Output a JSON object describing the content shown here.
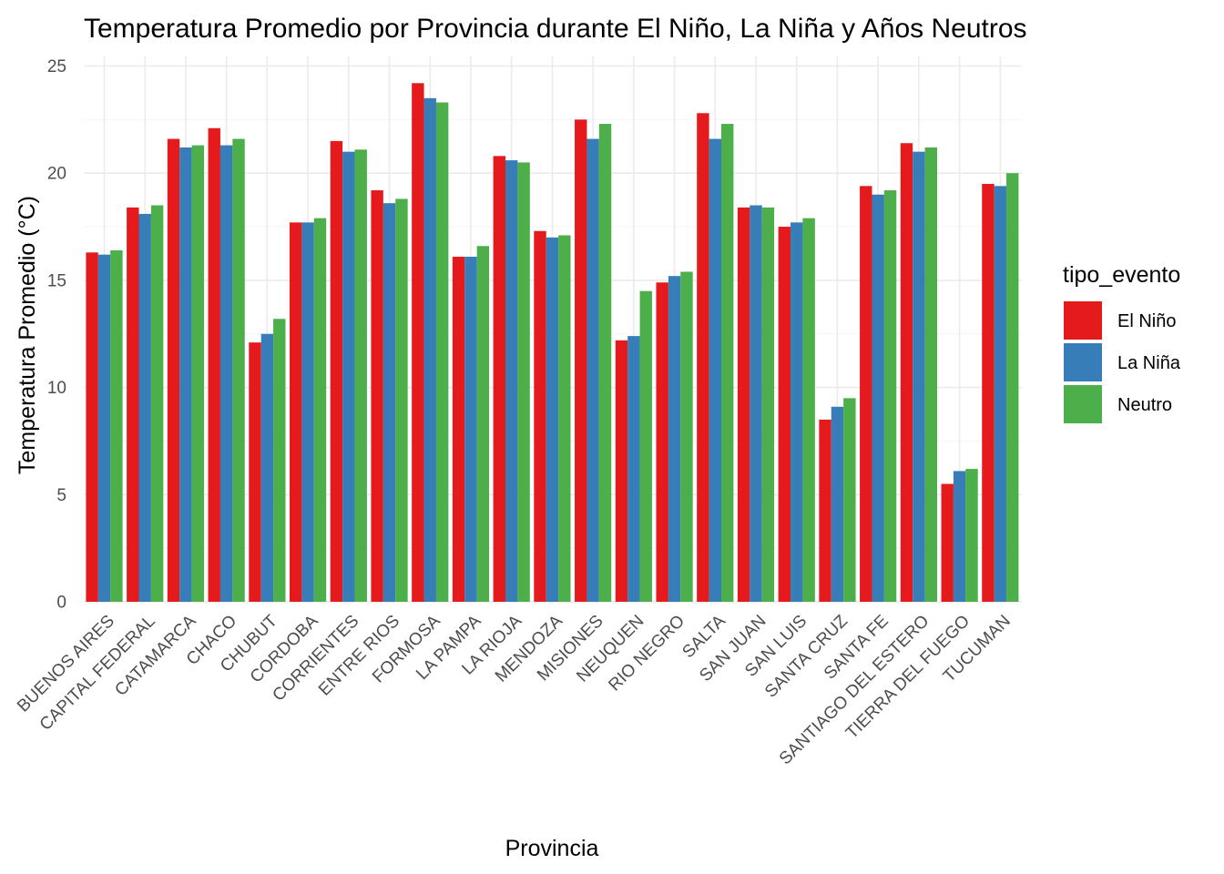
{
  "chart_data": {
    "type": "bar",
    "title": "Temperatura Promedio por Provincia durante El Niño, La Niña y Años Neutros",
    "xlabel": "Provincia",
    "ylabel": "Temperatura Promedio (°C)",
    "ylim": [
      0,
      25
    ],
    "yticks": [
      0,
      5,
      10,
      15,
      20,
      25
    ],
    "grid": true,
    "legend": {
      "title": "tipo_evento",
      "position": "right"
    },
    "categories": [
      "BUENOS AIRES",
      "CAPITAL FEDERAL",
      "CATAMARCA",
      "CHACO",
      "CHUBUT",
      "CORDOBA",
      "CORRIENTES",
      "ENTRE RIOS",
      "FORMOSA",
      "LA PAMPA",
      "LA RIOJA",
      "MENDOZA",
      "MISIONES",
      "NEUQUEN",
      "RIO NEGRO",
      "SALTA",
      "SAN JUAN",
      "SAN LUIS",
      "SANTA CRUZ",
      "SANTA FE",
      "SANTIAGO DEL ESTERO",
      "TIERRA DEL FUEGO",
      "TUCUMAN"
    ],
    "series": [
      {
        "name": "El Niño",
        "color": "#E41A1C",
        "values": [
          16.3,
          18.4,
          21.6,
          22.1,
          12.1,
          17.7,
          21.5,
          19.2,
          24.2,
          16.1,
          20.8,
          17.3,
          22.5,
          12.2,
          14.9,
          22.8,
          18.4,
          17.5,
          8.5,
          19.4,
          21.4,
          5.5,
          19.5
        ]
      },
      {
        "name": "La Niña",
        "color": "#377EB8",
        "values": [
          16.2,
          18.1,
          21.2,
          21.3,
          12.5,
          17.7,
          21.0,
          18.6,
          23.5,
          16.1,
          20.6,
          17.0,
          21.6,
          12.4,
          15.2,
          21.6,
          18.5,
          17.7,
          9.1,
          19.0,
          21.0,
          6.1,
          19.4
        ]
      },
      {
        "name": "Neutro",
        "color": "#4DAF4A",
        "values": [
          16.4,
          18.5,
          21.3,
          21.6,
          13.2,
          17.9,
          21.1,
          18.8,
          23.3,
          16.6,
          20.5,
          17.1,
          22.3,
          14.5,
          15.4,
          22.3,
          18.4,
          17.9,
          9.5,
          19.2,
          21.2,
          6.2,
          20.0
        ]
      }
    ]
  }
}
